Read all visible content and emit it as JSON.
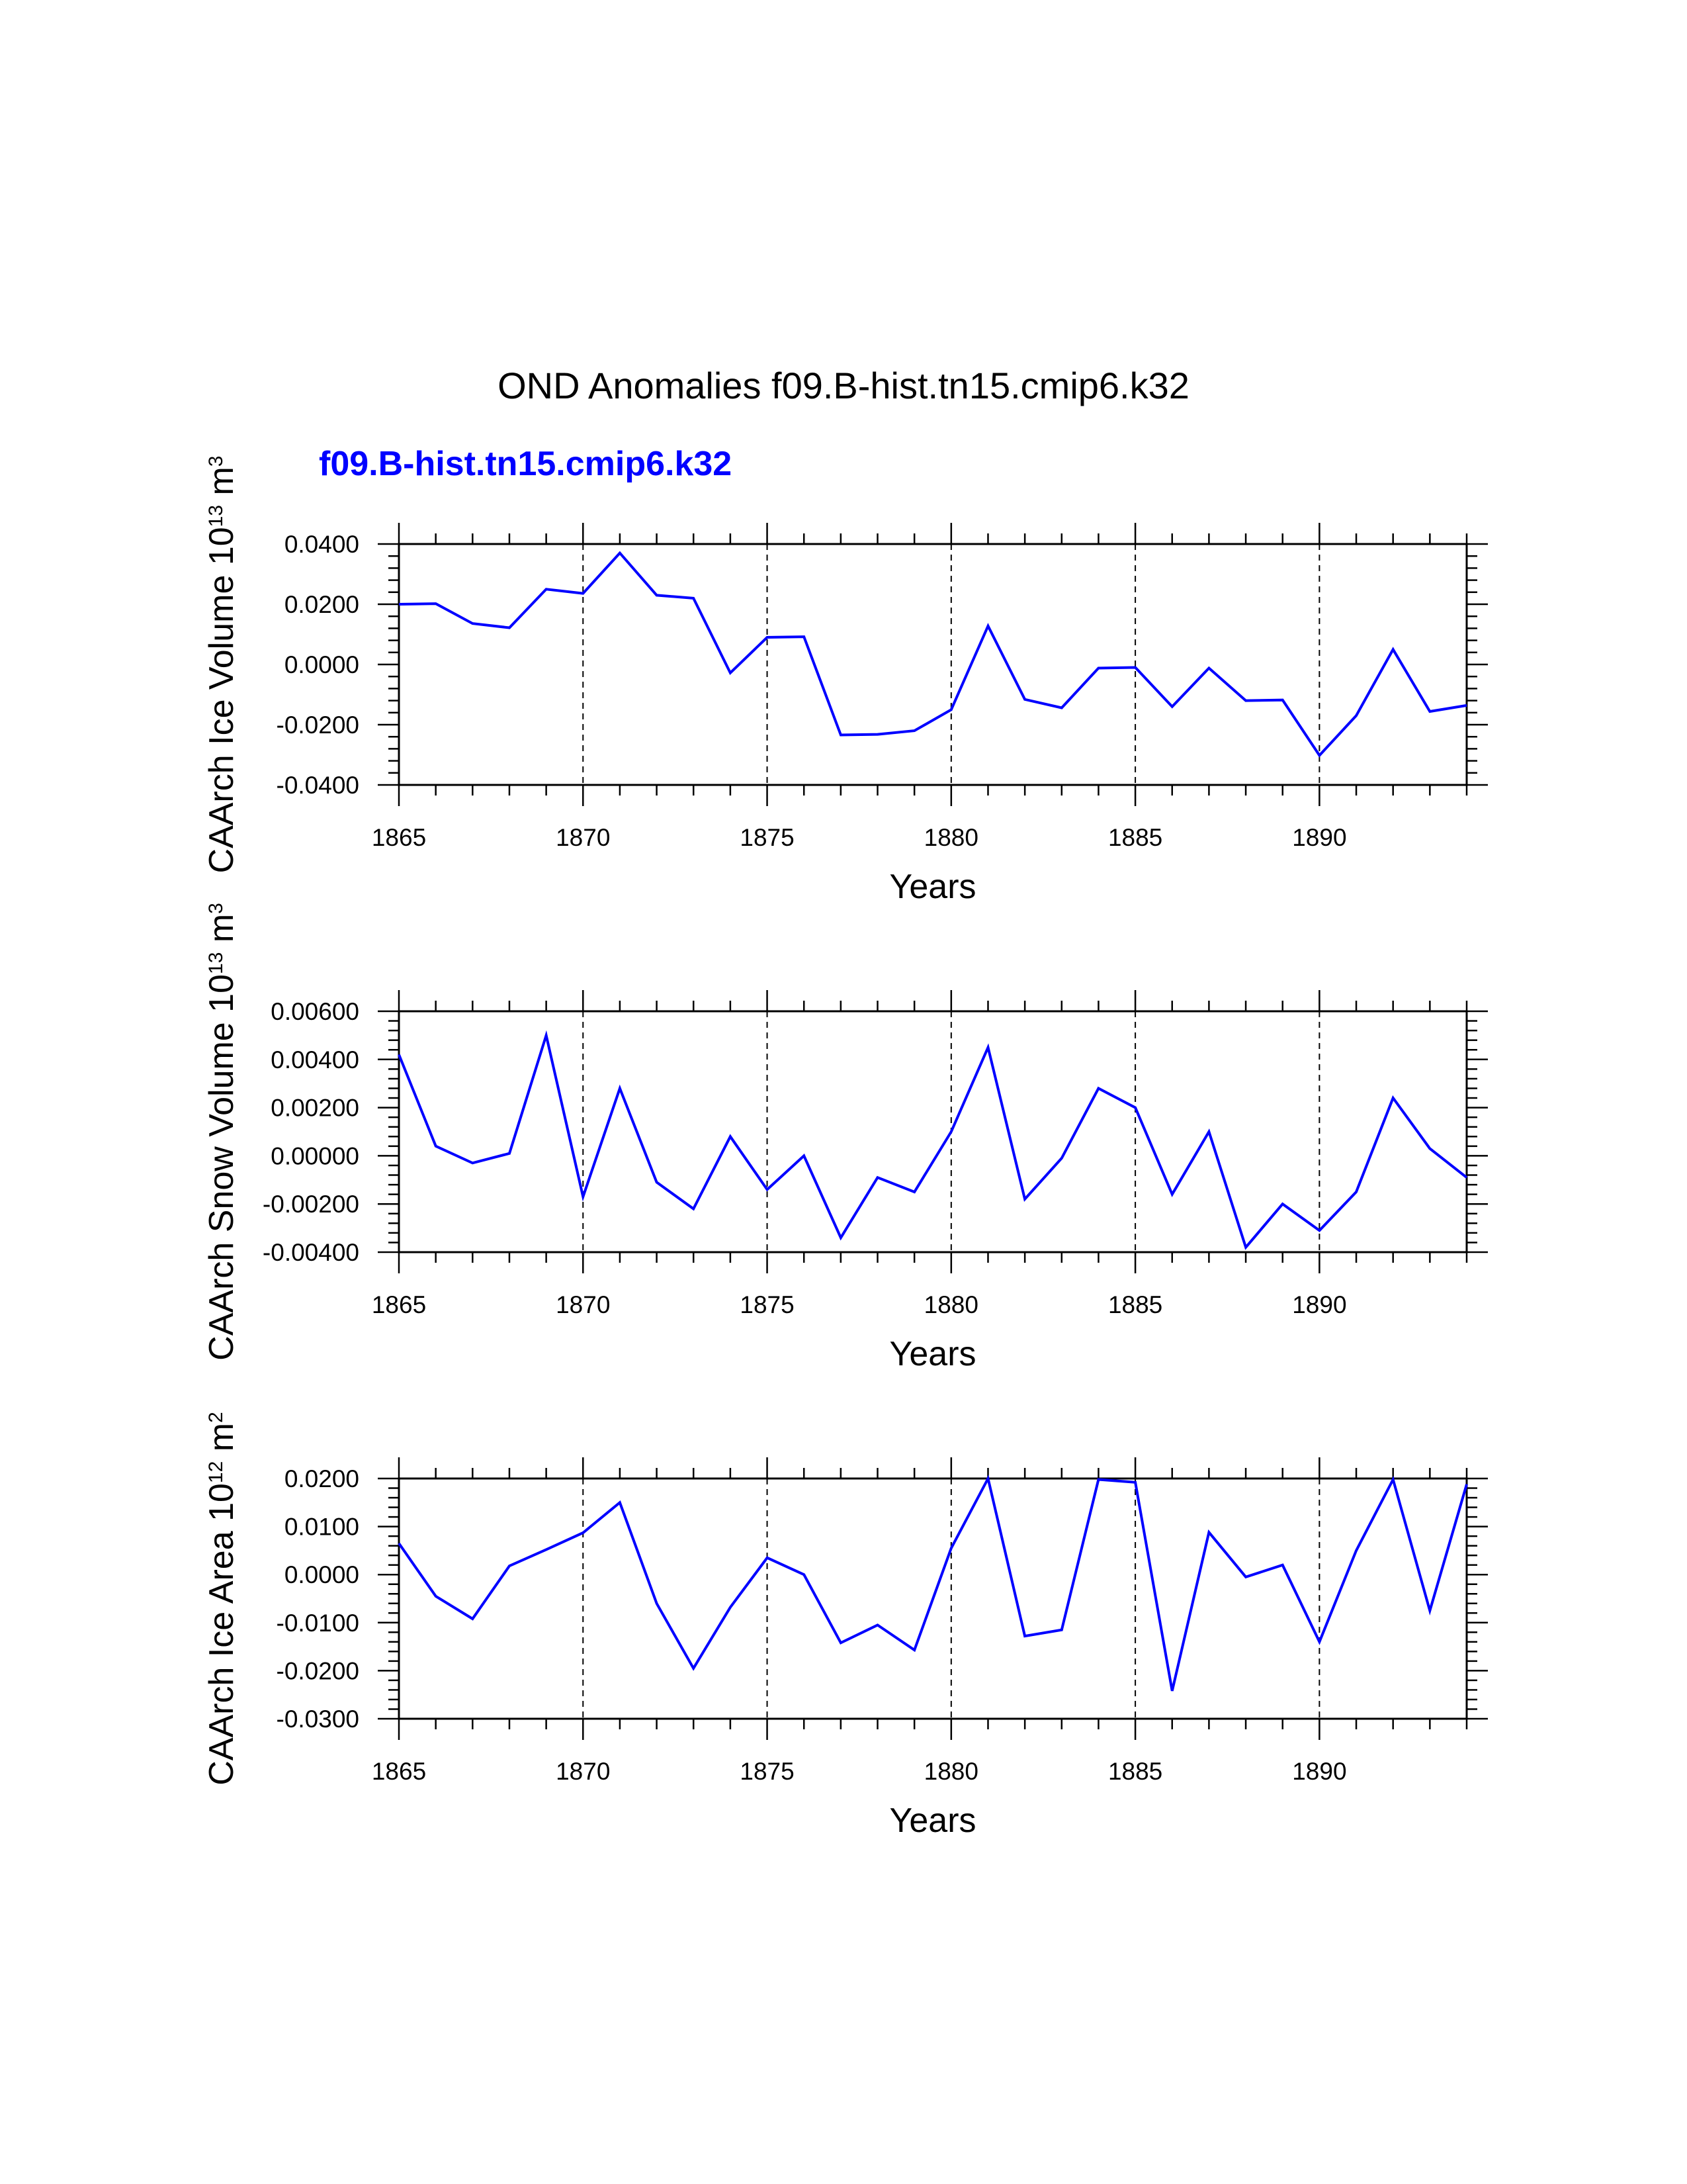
{
  "title": "OND Anomalies f09.B-hist.tn15.cmip6.k32",
  "subtitle": "f09.B-hist.tn15.cmip6.k32",
  "series_color": "#0000ff",
  "chart_data": [
    {
      "type": "line",
      "ylabel": {
        "base": "CAArch Ice Volume 10",
        "exp": "13",
        "unit": " m",
        "unit_exp": "3"
      },
      "xlabel": "Years",
      "xlim": [
        1865,
        1894
      ],
      "ylim": [
        -0.04,
        0.04
      ],
      "xticks": [
        1865,
        1870,
        1875,
        1880,
        1885,
        1890
      ],
      "xtick_labels": [
        "1865",
        "1870",
        "1875",
        "1880",
        "1885",
        "1890"
      ],
      "yticks": [
        -0.04,
        -0.02,
        0.0,
        0.02,
        0.04
      ],
      "ytick_labels": [
        "-0.0400",
        "-0.0200",
        "0.0000",
        "0.0200",
        "0.0400"
      ],
      "x": [
        1865,
        1866,
        1867,
        1868,
        1869,
        1870,
        1871,
        1872,
        1873,
        1874,
        1875,
        1876,
        1877,
        1878,
        1879,
        1880,
        1881,
        1882,
        1883,
        1884,
        1885,
        1886,
        1887,
        1888,
        1889,
        1890,
        1891,
        1892,
        1893,
        1894
      ],
      "series": [
        {
          "name": "f09.B-hist.tn15.cmip6.k32",
          "values": [
            0.02,
            0.0202,
            0.0136,
            0.0122,
            0.025,
            0.0236,
            0.037,
            0.023,
            0.022,
            -0.0028,
            0.009,
            0.0092,
            -0.0234,
            -0.0232,
            -0.022,
            -0.015,
            0.0128,
            -0.0116,
            -0.0144,
            -0.0012,
            -0.001,
            -0.014,
            -0.0012,
            -0.012,
            -0.0118,
            -0.0302,
            -0.017,
            0.005,
            -0.0156,
            -0.0136
          ]
        }
      ]
    },
    {
      "type": "line",
      "ylabel": {
        "base": "CAArch Snow Volume 10",
        "exp": "13",
        "unit": " m",
        "unit_exp": "3"
      },
      "xlabel": "Years",
      "xlim": [
        1865,
        1894
      ],
      "ylim": [
        -0.004,
        0.006
      ],
      "xticks": [
        1865,
        1870,
        1875,
        1880,
        1885,
        1890
      ],
      "xtick_labels": [
        "1865",
        "1870",
        "1875",
        "1880",
        "1885",
        "1890"
      ],
      "yticks": [
        -0.004,
        -0.002,
        0.0,
        0.002,
        0.004,
        0.006
      ],
      "ytick_labels": [
        "-0.00400",
        "-0.00200",
        "0.00000",
        "0.00200",
        "0.00400",
        "0.00600"
      ],
      "x": [
        1865,
        1866,
        1867,
        1868,
        1869,
        1870,
        1871,
        1872,
        1873,
        1874,
        1875,
        1876,
        1877,
        1878,
        1879,
        1880,
        1881,
        1882,
        1883,
        1884,
        1885,
        1886,
        1887,
        1888,
        1889,
        1890,
        1891,
        1892,
        1893,
        1894
      ],
      "series": [
        {
          "name": "f09.B-hist.tn15.cmip6.k32",
          "values": [
            0.0042,
            0.0004,
            -0.0003,
            0.0001,
            0.005,
            -0.0017,
            0.0028,
            -0.0011,
            -0.0022,
            0.0008,
            -0.0014,
            0.0,
            -0.0034,
            -0.0009,
            -0.0015,
            0.001,
            0.0045,
            -0.0018,
            -0.0001,
            0.0028,
            0.002,
            -0.0016,
            0.001,
            -0.0038,
            -0.002,
            -0.0031,
            -0.0015,
            0.0024,
            0.0003,
            -0.0009
          ]
        }
      ]
    },
    {
      "type": "line",
      "ylabel": {
        "base": "CAArch Ice Area 10",
        "exp": "12",
        "unit": " m",
        "unit_exp": "2"
      },
      "xlabel": "Years",
      "xlim": [
        1865,
        1894
      ],
      "ylim": [
        -0.03,
        0.02
      ],
      "xticks": [
        1865,
        1870,
        1875,
        1880,
        1885,
        1890
      ],
      "xtick_labels": [
        "1865",
        "1870",
        "1875",
        "1880",
        "1885",
        "1890"
      ],
      "yticks": [
        -0.03,
        -0.02,
        -0.01,
        0.0,
        0.01,
        0.02
      ],
      "ytick_labels": [
        "-0.0300",
        "-0.0200",
        "-0.0100",
        "0.0000",
        "0.0100",
        "0.0200"
      ],
      "x": [
        1865,
        1866,
        1867,
        1868,
        1869,
        1870,
        1871,
        1872,
        1873,
        1874,
        1875,
        1876,
        1877,
        1878,
        1879,
        1880,
        1881,
        1882,
        1883,
        1884,
        1885,
        1886,
        1887,
        1888,
        1889,
        1890,
        1891,
        1892,
        1893,
        1894
      ],
      "series": [
        {
          "name": "f09.B-hist.tn15.cmip6.k32",
          "values": [
            0.0065,
            -0.0045,
            -0.0092,
            0.0018,
            0.0052,
            0.0087,
            0.015,
            -0.006,
            -0.0195,
            -0.0068,
            0.0035,
            0.0,
            -0.0142,
            -0.0105,
            -0.0157,
            0.0055,
            0.02,
            -0.0128,
            -0.0115,
            0.0198,
            0.0192,
            -0.0242,
            0.0088,
            -0.0005,
            0.002,
            -0.014,
            0.005,
            0.0198,
            -0.0075,
            0.0188
          ]
        }
      ]
    }
  ]
}
